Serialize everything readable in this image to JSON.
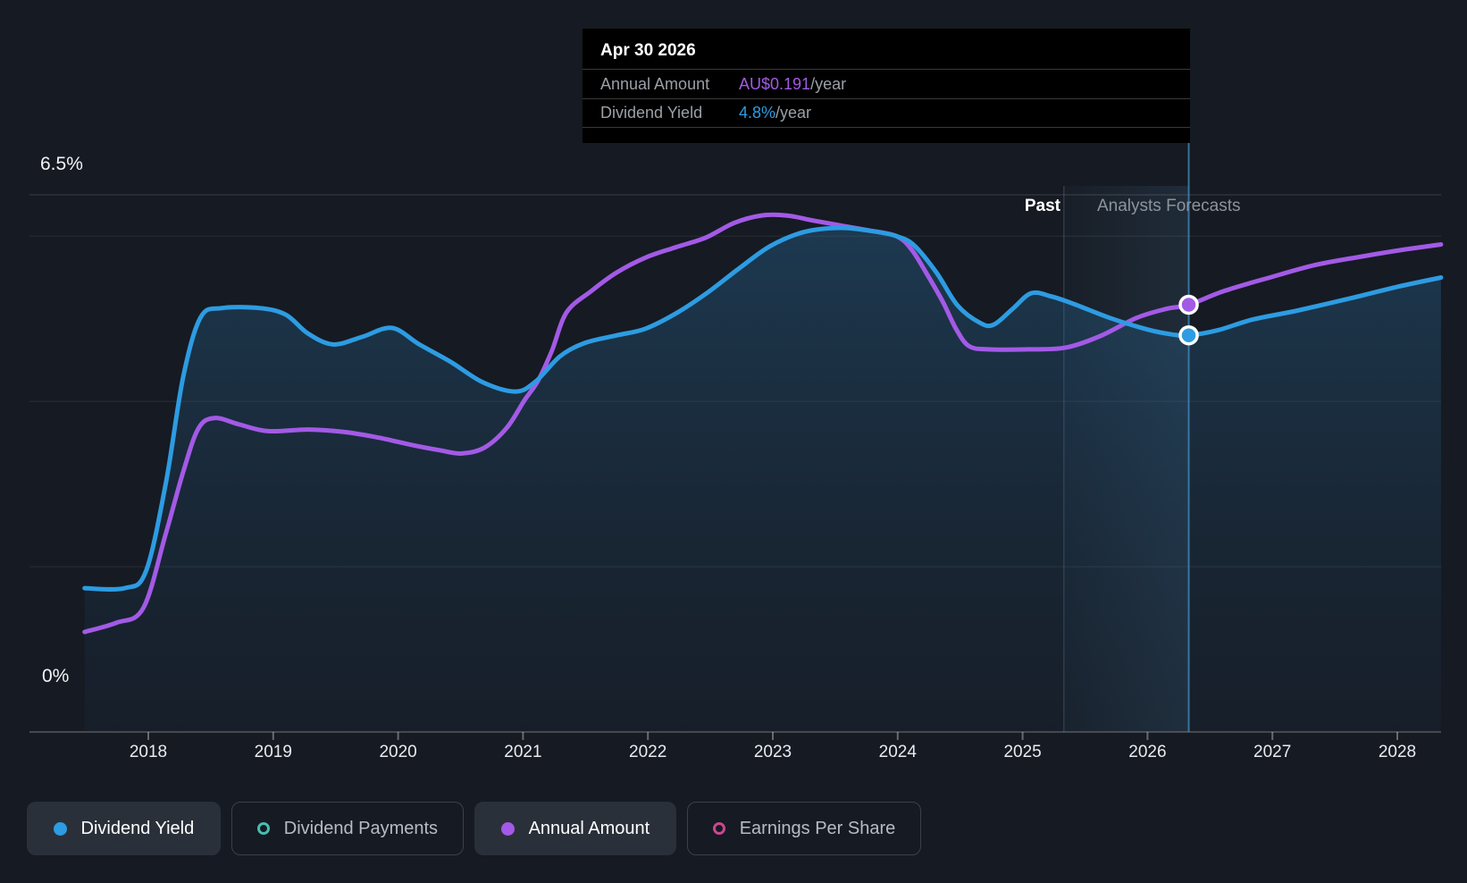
{
  "colors": {
    "blue": "#2D9CE2",
    "purple": "#A35AE6",
    "teal": "#45BEB0",
    "pink": "#C9488F",
    "area_top": "rgba(44,125,180,0.34)",
    "area_bottom": "rgba(30,70,105,0.10)",
    "band": "rgba(100,170,220,0.10)",
    "crosshair": "#3F8AB8"
  },
  "tooltip": {
    "date": "Apr 30 2026",
    "rows": [
      {
        "label": "Annual Amount",
        "value": "AU$0.191",
        "suffix": "/year",
        "color_key": "colors.purple"
      },
      {
        "label": "Dividend Yield",
        "value": "4.8%",
        "suffix": "/year",
        "color_key": "colors.blue"
      }
    ]
  },
  "regions": {
    "past_label": "Past",
    "forecast_label": "Analysts Forecasts"
  },
  "axis": {
    "y_max_label": "6.5%",
    "y_min_label": "0%",
    "x_ticks": [
      "2018",
      "2019",
      "2020",
      "2021",
      "2022",
      "2023",
      "2024",
      "2025",
      "2026",
      "2027",
      "2028"
    ]
  },
  "legend": {
    "items": [
      {
        "label": "Dividend Yield",
        "style": "filled",
        "color": "#2D9CE2",
        "active": true
      },
      {
        "label": "Dividend Payments",
        "style": "outline",
        "color": "#45BEB0",
        "active": false
      },
      {
        "label": "Annual Amount",
        "style": "filled",
        "color": "#A35AE6",
        "active": true
      },
      {
        "label": "Earnings Per Share",
        "style": "outline",
        "color": "#C9488F",
        "active": false
      }
    ]
  },
  "chart_data": {
    "type": "line",
    "title": "Dividend yield history and forecast",
    "xlim": [
      2017.49,
      2028.35
    ],
    "ylim": [
      0,
      6.5
    ],
    "y_gridlines": [
      6.5,
      6,
      4,
      2,
      0
    ],
    "x_tick_years": [
      2018,
      2019,
      2020,
      2021,
      2022,
      2023,
      2024,
      2025,
      2026,
      2027,
      2028
    ],
    "past_until": 2025.33,
    "hover_x": 2026.33,
    "legend_position": "bottom",
    "series": [
      {
        "name": "Annual Amount",
        "color": "#A35AE6",
        "area": false,
        "points": [
          [
            2017.49,
            1.21
          ],
          [
            2017.74,
            1.32
          ],
          [
            2017.96,
            1.5
          ],
          [
            2018.14,
            2.4
          ],
          [
            2018.28,
            3.15
          ],
          [
            2018.4,
            3.67
          ],
          [
            2018.53,
            3.8
          ],
          [
            2018.73,
            3.72
          ],
          [
            2018.96,
            3.64
          ],
          [
            2019.28,
            3.66
          ],
          [
            2019.57,
            3.63
          ],
          [
            2019.85,
            3.56
          ],
          [
            2020.12,
            3.47
          ],
          [
            2020.33,
            3.41
          ],
          [
            2020.51,
            3.37
          ],
          [
            2020.69,
            3.44
          ],
          [
            2020.87,
            3.68
          ],
          [
            2021.01,
            4.01
          ],
          [
            2021.12,
            4.25
          ],
          [
            2021.23,
            4.61
          ],
          [
            2021.35,
            5.08
          ],
          [
            2021.55,
            5.34
          ],
          [
            2021.75,
            5.56
          ],
          [
            2021.98,
            5.74
          ],
          [
            2022.21,
            5.86
          ],
          [
            2022.46,
            5.98
          ],
          [
            2022.69,
            6.16
          ],
          [
            2022.91,
            6.25
          ],
          [
            2023.11,
            6.25
          ],
          [
            2023.32,
            6.19
          ],
          [
            2023.54,
            6.13
          ],
          [
            2023.77,
            6.07
          ],
          [
            2023.99,
            6.0
          ],
          [
            2024.11,
            5.84
          ],
          [
            2024.23,
            5.55
          ],
          [
            2024.36,
            5.21
          ],
          [
            2024.47,
            4.87
          ],
          [
            2024.57,
            4.67
          ],
          [
            2024.72,
            4.63
          ],
          [
            2025.04,
            4.63
          ],
          [
            2025.34,
            4.65
          ],
          [
            2025.62,
            4.79
          ],
          [
            2025.91,
            5.01
          ],
          [
            2026.15,
            5.12
          ],
          [
            2026.33,
            5.17
          ],
          [
            2026.62,
            5.34
          ],
          [
            2026.98,
            5.5
          ],
          [
            2027.34,
            5.65
          ],
          [
            2027.7,
            5.75
          ],
          [
            2028.02,
            5.83
          ],
          [
            2028.35,
            5.9
          ]
        ],
        "marker": {
          "x": 2026.33,
          "y": 5.17,
          "label": "AU$0.191/year"
        }
      },
      {
        "name": "Dividend Yield",
        "color": "#2D9CE2",
        "area": true,
        "points": [
          [
            2017.49,
            1.74
          ],
          [
            2017.81,
            1.74
          ],
          [
            2017.98,
            1.94
          ],
          [
            2018.14,
            3.01
          ],
          [
            2018.28,
            4.3
          ],
          [
            2018.42,
            5.02
          ],
          [
            2018.59,
            5.13
          ],
          [
            2018.89,
            5.13
          ],
          [
            2019.1,
            5.05
          ],
          [
            2019.28,
            4.82
          ],
          [
            2019.48,
            4.69
          ],
          [
            2019.71,
            4.78
          ],
          [
            2019.95,
            4.89
          ],
          [
            2020.17,
            4.69
          ],
          [
            2020.42,
            4.48
          ],
          [
            2020.68,
            4.23
          ],
          [
            2020.94,
            4.12
          ],
          [
            2021.1,
            4.24
          ],
          [
            2021.3,
            4.55
          ],
          [
            2021.5,
            4.71
          ],
          [
            2021.75,
            4.8
          ],
          [
            2021.98,
            4.88
          ],
          [
            2022.23,
            5.07
          ],
          [
            2022.48,
            5.32
          ],
          [
            2022.73,
            5.61
          ],
          [
            2022.98,
            5.88
          ],
          [
            2023.25,
            6.05
          ],
          [
            2023.54,
            6.1
          ],
          [
            2023.8,
            6.06
          ],
          [
            2023.99,
            6.0
          ],
          [
            2024.13,
            5.89
          ],
          [
            2024.31,
            5.56
          ],
          [
            2024.48,
            5.16
          ],
          [
            2024.66,
            4.95
          ],
          [
            2024.77,
            4.93
          ],
          [
            2024.92,
            5.12
          ],
          [
            2025.07,
            5.31
          ],
          [
            2025.23,
            5.27
          ],
          [
            2025.41,
            5.18
          ],
          [
            2025.7,
            5.01
          ],
          [
            2026.0,
            4.87
          ],
          [
            2026.2,
            4.81
          ],
          [
            2026.33,
            4.8
          ],
          [
            2026.56,
            4.86
          ],
          [
            2026.84,
            4.99
          ],
          [
            2027.2,
            5.1
          ],
          [
            2027.63,
            5.25
          ],
          [
            2028.01,
            5.39
          ],
          [
            2028.35,
            5.5
          ]
        ],
        "marker": {
          "x": 2026.33,
          "y": 4.8,
          "label": "4.8%/year"
        }
      }
    ]
  }
}
